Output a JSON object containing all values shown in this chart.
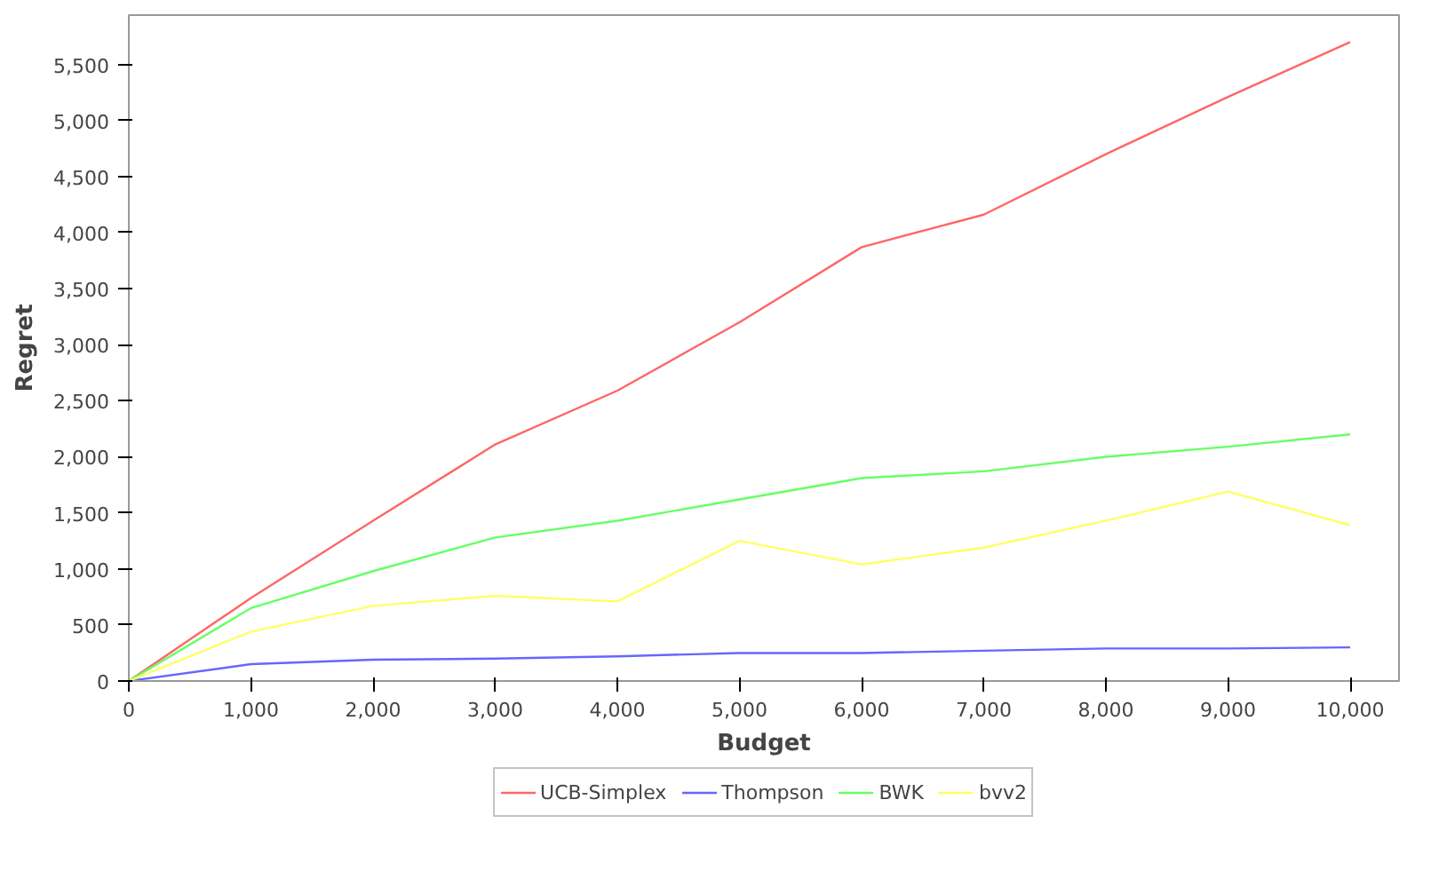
{
  "chart_data": {
    "type": "line",
    "xlabel": "Budget",
    "ylabel": "Regret",
    "x": [
      0,
      1000,
      2000,
      3000,
      4000,
      5000,
      6000,
      7000,
      8000,
      9000,
      10000
    ],
    "series": [
      {
        "name": "UCB-Simplex",
        "color": "#ff6666",
        "values": [
          0,
          740,
          1430,
          2110,
          2590,
          3200,
          3870,
          4160,
          4700,
          5210,
          5700
        ]
      },
      {
        "name": "Thompson",
        "color": "#6666ff",
        "values": [
          0,
          150,
          190,
          200,
          220,
          250,
          250,
          270,
          290,
          290,
          300
        ]
      },
      {
        "name": "BWK",
        "color": "#66ff66",
        "values": [
          0,
          650,
          980,
          1280,
          1430,
          1620,
          1810,
          1870,
          2000,
          2090,
          2200
        ]
      },
      {
        "name": "bvv2",
        "color": "#ffff66",
        "values": [
          0,
          440,
          670,
          760,
          710,
          1250,
          1040,
          1190,
          1430,
          1690,
          1390
        ]
      }
    ],
    "xlim": [
      0,
      10400
    ],
    "ylim": [
      0,
      5940
    ],
    "xticks": [
      {
        "value": 0,
        "label": "0"
      },
      {
        "value": 1000,
        "label": "1,000"
      },
      {
        "value": 2000,
        "label": "2,000"
      },
      {
        "value": 3000,
        "label": "3,000"
      },
      {
        "value": 4000,
        "label": "4,000"
      },
      {
        "value": 5000,
        "label": "5,000"
      },
      {
        "value": 6000,
        "label": "6,000"
      },
      {
        "value": 7000,
        "label": "7,000"
      },
      {
        "value": 8000,
        "label": "8,000"
      },
      {
        "value": 9000,
        "label": "9,000"
      },
      {
        "value": 10000,
        "label": "10,000"
      }
    ],
    "yticks": [
      {
        "value": 0,
        "label": "0"
      },
      {
        "value": 500,
        "label": "500"
      },
      {
        "value": 1000,
        "label": "1,000"
      },
      {
        "value": 1500,
        "label": "1,500"
      },
      {
        "value": 2000,
        "label": "2,000"
      },
      {
        "value": 2500,
        "label": "2,500"
      },
      {
        "value": 3000,
        "label": "3,000"
      },
      {
        "value": 3500,
        "label": "3,500"
      },
      {
        "value": 4000,
        "label": "4,000"
      },
      {
        "value": 4500,
        "label": "4,500"
      },
      {
        "value": 5000,
        "label": "5,000"
      },
      {
        "value": 5500,
        "label": "5,500"
      }
    ],
    "grid": false,
    "legend": "bottom"
  }
}
